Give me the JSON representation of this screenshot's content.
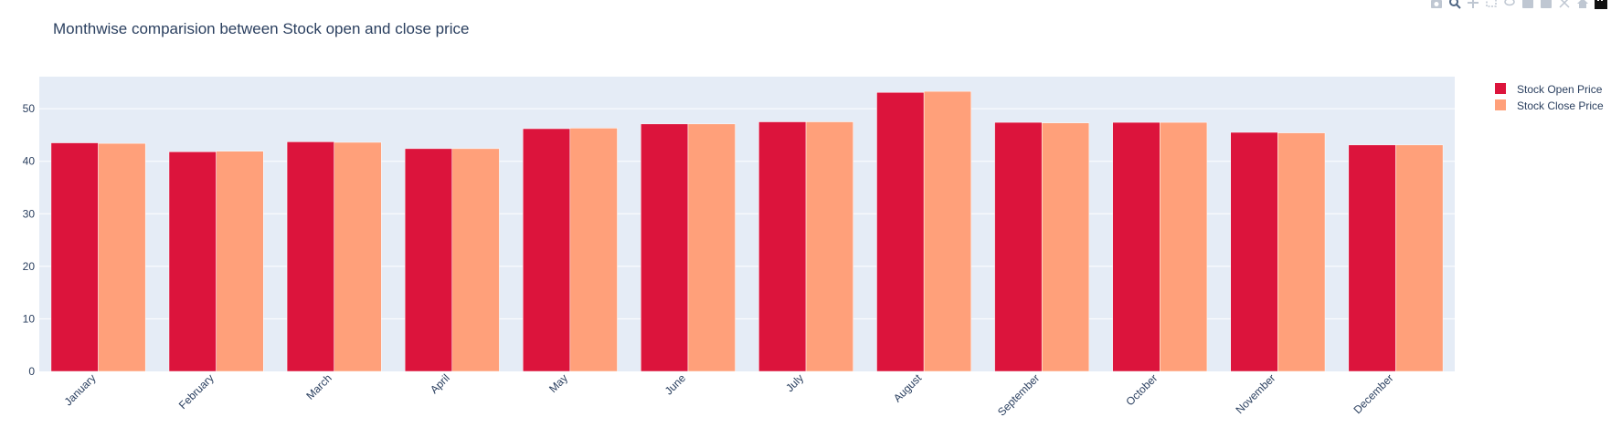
{
  "chart_data": {
    "type": "bar",
    "title": "Monthwise comparision between Stock open and close price",
    "categories": [
      "January",
      "February",
      "March",
      "April",
      "May",
      "June",
      "July",
      "August",
      "September",
      "October",
      "November",
      "December"
    ],
    "series": [
      {
        "name": "Stock Open Price",
        "color": "#dc143c",
        "values": [
          43.5,
          41.8,
          43.7,
          42.4,
          46.2,
          47.1,
          47.5,
          53.1,
          47.4,
          47.4,
          45.5,
          43.1
        ]
      },
      {
        "name": "Stock Close Price",
        "color": "#ffa07a",
        "values": [
          43.4,
          41.9,
          43.6,
          42.4,
          46.3,
          47.1,
          47.5,
          53.3,
          47.3,
          47.4,
          45.4,
          43.1
        ]
      }
    ],
    "xlabel": "",
    "ylabel": "",
    "ylim": [
      0,
      56.1
    ],
    "yticks": [
      0,
      10,
      20,
      30,
      40,
      50
    ],
    "grid": true,
    "legend_position": "top-right",
    "plot_background": "#e5ecf6"
  },
  "modebar": {
    "icons": [
      "camera-icon",
      "zoom-icon",
      "pan-icon",
      "box-select-icon",
      "lasso-icon",
      "zoom-in-icon",
      "zoom-out-icon",
      "autoscale-icon",
      "home-icon",
      "plotly-logo-icon"
    ]
  }
}
